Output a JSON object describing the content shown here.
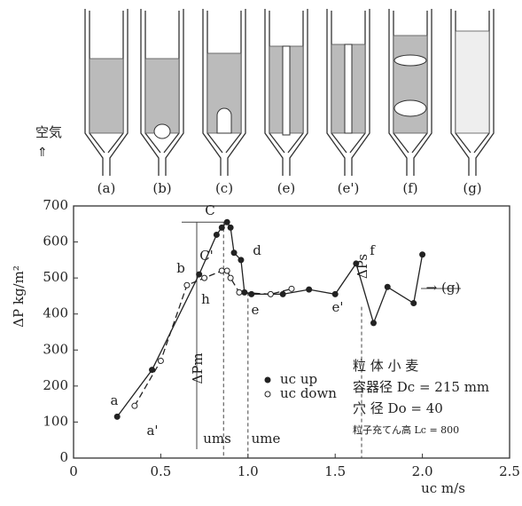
{
  "diagram": {
    "air_label": "空気",
    "labels": [
      "(a)",
      "(b)",
      "(c)",
      "(e)",
      "(e')",
      "(f)",
      "(g)"
    ]
  },
  "chart_data": {
    "type": "scatter",
    "y_label": "ΔP  kg/m²",
    "x_label": "uc    m/s",
    "xlim": [
      0,
      2.5
    ],
    "ylim": [
      0,
      700
    ],
    "xticks": [
      0,
      0.5,
      {
        "value": 1,
        "label": "1.0"
      },
      1.5,
      {
        "value": 2,
        "label": "2.0"
      },
      2.5
    ],
    "yticks": [
      0,
      100,
      200,
      300,
      400,
      500,
      600,
      700
    ],
    "series": [
      {
        "name": "uc  up",
        "color": "#222",
        "marker": "filled",
        "dash": false,
        "x": [
          0.25,
          0.45,
          0.72,
          0.82,
          0.85,
          0.88,
          0.9,
          0.92,
          0.96,
          0.98,
          1.02,
          1.2,
          1.35,
          1.5,
          1.62,
          1.72,
          1.8,
          1.95,
          2.0
        ],
        "values": [
          115,
          245,
          510,
          620,
          640,
          655,
          640,
          570,
          550,
          460,
          455,
          455,
          468,
          455,
          540,
          375,
          475,
          430,
          565
        ]
      },
      {
        "name": "uc  down",
        "color": "#222",
        "marker": "open",
        "dash": true,
        "x": [
          0.35,
          0.5,
          0.65,
          0.75,
          0.85,
          0.88,
          0.9,
          0.95,
          1.13,
          1.25
        ],
        "values": [
          145,
          270,
          480,
          500,
          520,
          520,
          500,
          460,
          455,
          470
        ]
      }
    ],
    "annotations": [
      "a",
      "a'",
      "b",
      "C",
      "C'",
      "d",
      "h",
      "e",
      "e'",
      "f",
      "→ (g)",
      "ΔPm",
      "ΔPs",
      "ums",
      "ume"
    ],
    "notes": [
      "粒 体   小 麦",
      "容器径  Dc = 215 mm",
      "穴  径  Do = 40",
      "粒子充てん高  Lc = 800"
    ]
  }
}
